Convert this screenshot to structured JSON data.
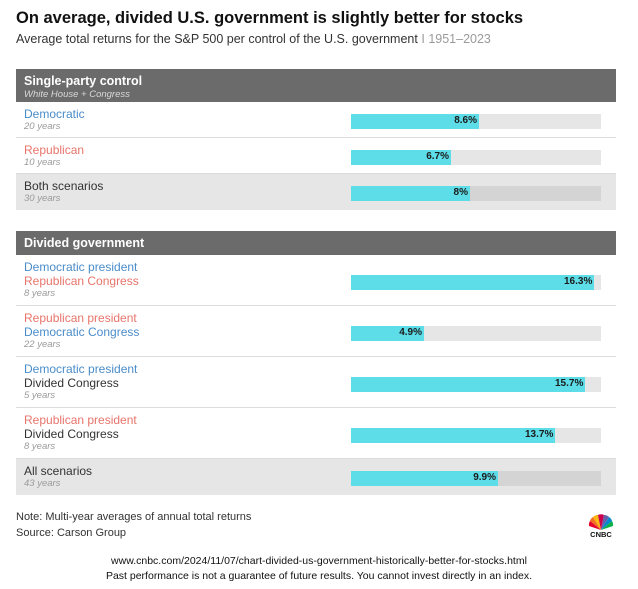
{
  "title": "On average, divided U.S. government is slightly better for stocks",
  "subtitle": "Average total returns for the S&P 500 per control of the U.S. government",
  "subtitle_range": "1951–2023",
  "subtitle_separator": "I",
  "chart_data": {
    "type": "bar",
    "orientation": "horizontal",
    "title": "On average, divided U.S. government is slightly better for stocks",
    "subtitle": "Average total returns for the S&P 500 per control of the U.S. government I 1951–2023",
    "xlim": [
      0,
      16.8
    ],
    "unit": "%",
    "sections": [
      {
        "title": "Single-party control",
        "subtitle": "White House + Congress",
        "rows": [
          {
            "lines": [
              {
                "text": "Democratic",
                "party": "dem"
              }
            ],
            "years": "20 years",
            "value": 8.6,
            "label": "8.6%",
            "total": false
          },
          {
            "lines": [
              {
                "text": "Republican",
                "party": "rep"
              }
            ],
            "years": "10 years",
            "value": 6.7,
            "label": "6.7%",
            "total": false
          },
          {
            "lines": [
              {
                "text": "Both scenarios",
                "party": "neutral"
              }
            ],
            "years": "30 years",
            "value": 8.0,
            "label": "8%",
            "total": true
          }
        ]
      },
      {
        "title": "Divided government",
        "subtitle": "",
        "rows": [
          {
            "lines": [
              {
                "text": "Democratic president",
                "party": "dem"
              },
              {
                "text": "Republican Congress",
                "party": "rep"
              }
            ],
            "years": "8 years",
            "value": 16.3,
            "label": "16.3%",
            "total": false
          },
          {
            "lines": [
              {
                "text": "Republican president",
                "party": "rep"
              },
              {
                "text": "Democratic Congress",
                "party": "dem"
              }
            ],
            "years": "22 years",
            "value": 4.9,
            "label": "4.9%",
            "total": false
          },
          {
            "lines": [
              {
                "text": "Democratic president",
                "party": "dem"
              },
              {
                "text": "Divided Congress",
                "party": "neutral"
              }
            ],
            "years": "5 years",
            "value": 15.7,
            "label": "15.7%",
            "total": false
          },
          {
            "lines": [
              {
                "text": "Republican president",
                "party": "rep"
              },
              {
                "text": "Divided Congress",
                "party": "neutral"
              }
            ],
            "years": "8 years",
            "value": 13.7,
            "label": "13.7%",
            "total": false
          },
          {
            "lines": [
              {
                "text": "All scenarios",
                "party": "neutral"
              }
            ],
            "years": "43 years",
            "value": 9.9,
            "label": "9.9%",
            "total": true
          }
        ]
      }
    ],
    "colors": {
      "bar": "#5ddde8",
      "democratic": "#4a8cc9",
      "republican": "#e8746b",
      "header": "#6b6b6b",
      "track": "#e6e6e6"
    }
  },
  "note": "Note: Multi-year averages of annual total returns",
  "source": "Source: Carson Group",
  "logo_text": "CNBC",
  "url": "www.cnbc.com/2024/11/07/chart-divided-us-government-historically-better-for-stocks.html",
  "disclaimer": "Past performance is not a guarantee of future results. You cannot invest directly in an index."
}
